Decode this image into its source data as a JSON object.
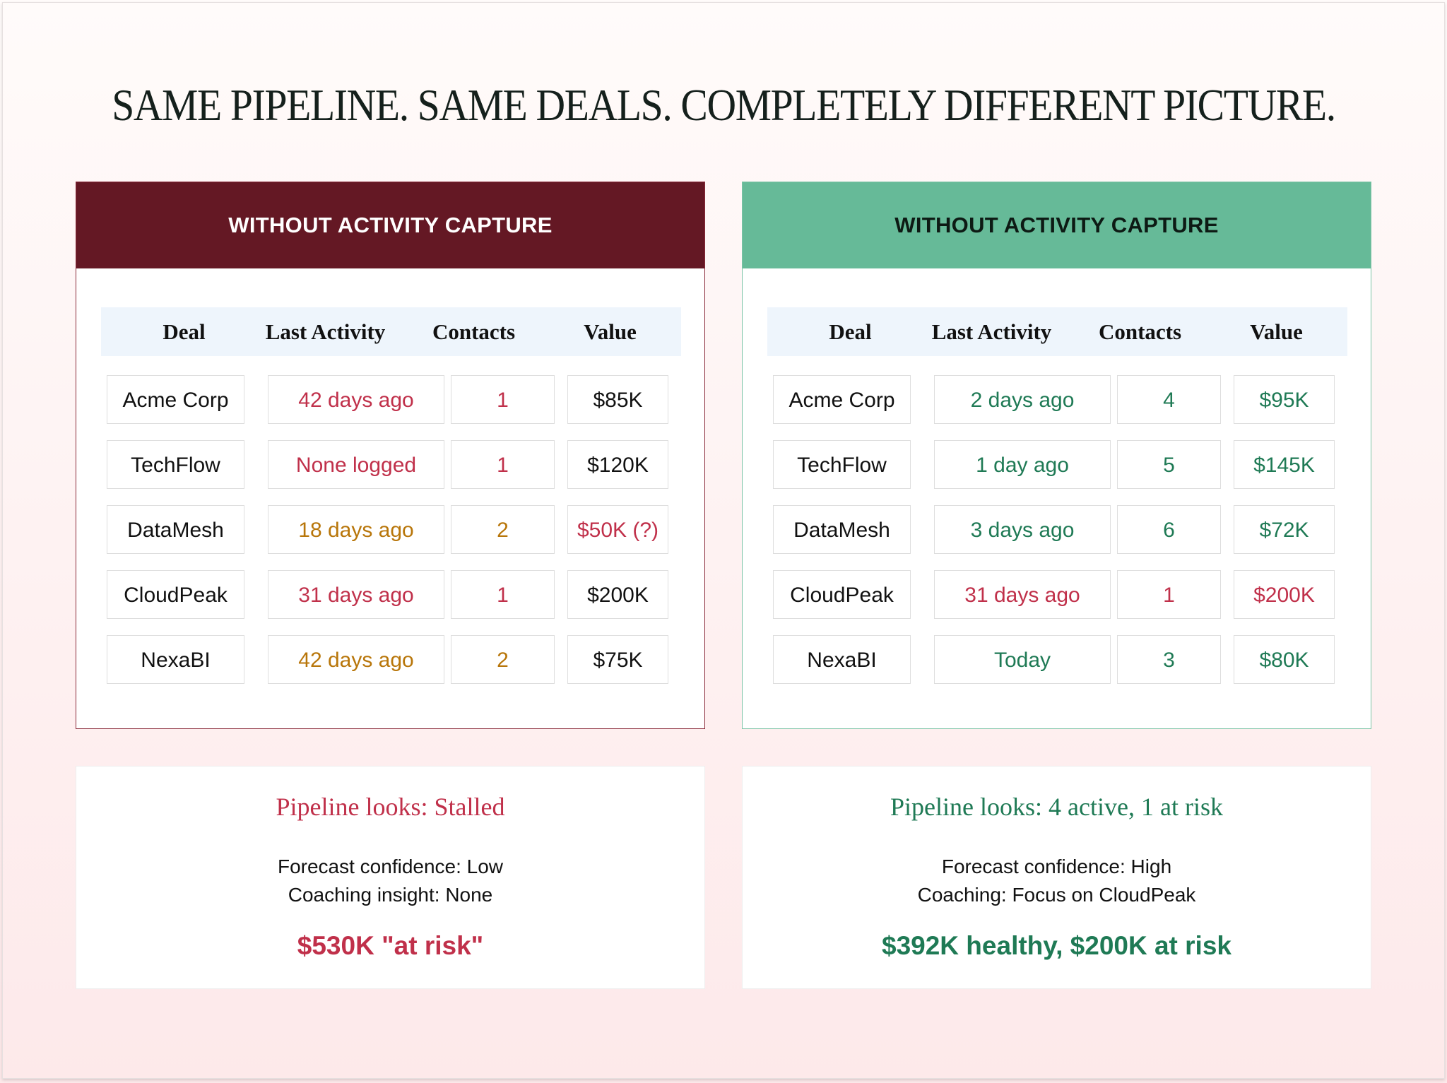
{
  "title": "SAME PIPELINE. SAME DEALS. COMPLETELY DIFFERENT PICTURE.",
  "colors": {
    "red": "#c0304a",
    "orange": "#b8760a",
    "green": "#1f7a55",
    "black": "#111111",
    "dark_red": "#641824",
    "mint": "#66ba98"
  },
  "columns": [
    "Deal",
    "Last Activity",
    "Contacts",
    "Value"
  ],
  "left": {
    "header": "WITHOUT ACTIVITY CAPTURE",
    "rows": [
      {
        "deal": "Acme Corp",
        "activity": "42 days ago",
        "contacts": "1",
        "value": "$85K",
        "activity_color": "red",
        "contacts_color": "red",
        "value_color": "black"
      },
      {
        "deal": "TechFlow",
        "activity": "None logged",
        "contacts": "1",
        "value": "$120K",
        "activity_color": "red",
        "contacts_color": "red",
        "value_color": "black"
      },
      {
        "deal": "DataMesh",
        "activity": "18 days ago",
        "contacts": "2",
        "value": "$50K (?)",
        "activity_color": "orange",
        "contacts_color": "orange",
        "value_color": "red"
      },
      {
        "deal": "CloudPeak",
        "activity": "31 days ago",
        "contacts": "1",
        "value": "$200K",
        "activity_color": "red",
        "contacts_color": "red",
        "value_color": "black"
      },
      {
        "deal": "NexaBI",
        "activity": "42 days ago",
        "contacts": "2",
        "value": "$75K",
        "activity_color": "orange",
        "contacts_color": "orange",
        "value_color": "black"
      }
    ],
    "summary": {
      "headline": "Pipeline looks: Stalled",
      "line1": "Forecast confidence: Low",
      "line2": "Coaching insight: None",
      "big": "$530K \"at risk\""
    }
  },
  "right": {
    "header": "WITHOUT ACTIVITY CAPTURE",
    "rows": [
      {
        "deal": "Acme Corp",
        "activity": "2 days ago",
        "contacts": "4",
        "value": "$95K",
        "activity_color": "green",
        "contacts_color": "green",
        "value_color": "green"
      },
      {
        "deal": "TechFlow",
        "activity": "1 day ago",
        "contacts": "5",
        "value": "$145K",
        "activity_color": "green",
        "contacts_color": "green",
        "value_color": "green"
      },
      {
        "deal": "DataMesh",
        "activity": "3 days ago",
        "contacts": "6",
        "value": "$72K",
        "activity_color": "green",
        "contacts_color": "green",
        "value_color": "green"
      },
      {
        "deal": "CloudPeak",
        "activity": "31 days ago",
        "contacts": "1",
        "value": "$200K",
        "activity_color": "red",
        "contacts_color": "red",
        "value_color": "red"
      },
      {
        "deal": "NexaBI",
        "activity": "Today",
        "contacts": "3",
        "value": "$80K",
        "activity_color": "green",
        "contacts_color": "green",
        "value_color": "green"
      }
    ],
    "summary": {
      "headline": "Pipeline looks: 4 active, 1 at risk",
      "line1": "Forecast confidence: High",
      "line2": "Coaching: Focus on CloudPeak",
      "big": "$392K healthy, $200K at risk"
    }
  }
}
